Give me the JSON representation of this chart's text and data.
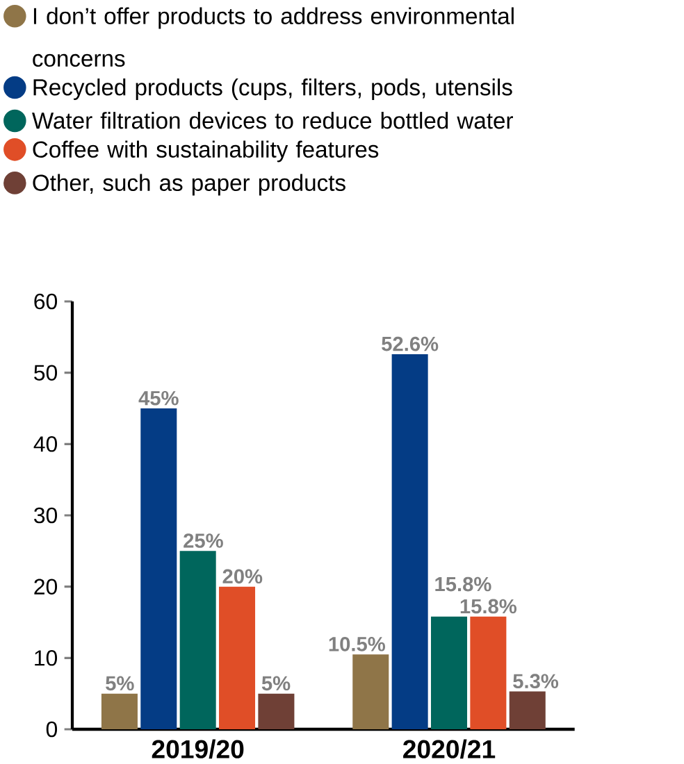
{
  "chart_data": {
    "type": "bar",
    "categories": [
      "2019/20",
      "2020/21"
    ],
    "series": [
      {
        "name": "I don’t offer products to address environmental concerns",
        "color": "#8f7548",
        "values": [
          5,
          10.5
        ],
        "value_labels": [
          "5%",
          "10.5%"
        ]
      },
      {
        "name": "Recycled products (cups, filters, pods, utensils",
        "color": "#043c85",
        "values": [
          45,
          52.6
        ],
        "value_labels": [
          "45%",
          "52.6%"
        ]
      },
      {
        "name": "Water filtration devices to reduce bottled water",
        "color": "#00665c",
        "values": [
          25,
          15.8
        ],
        "value_labels": [
          "25%",
          "15.8%"
        ]
      },
      {
        "name": "Coffee with sustainability features",
        "color": "#e04e27",
        "values": [
          20,
          15.8
        ],
        "value_labels": [
          "20%",
          "15.8%"
        ]
      },
      {
        "name": "Other, such as paper products",
        "color": "#6f4036",
        "values": [
          5,
          5.3
        ],
        "value_labels": [
          "5%",
          "5.3%"
        ]
      }
    ],
    "ylim": [
      0,
      60
    ],
    "yticks": [
      0,
      10,
      20,
      30,
      40,
      50,
      60
    ],
    "grid": false,
    "legend": "top",
    "marker": "circle"
  }
}
